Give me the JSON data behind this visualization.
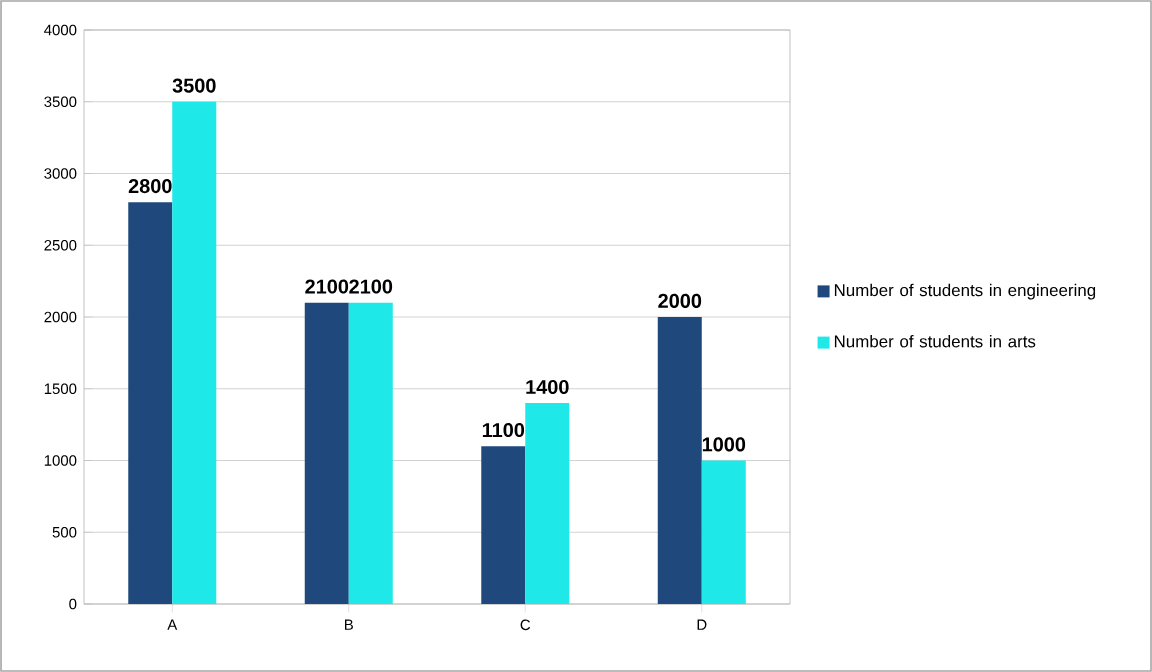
{
  "chart_data": {
    "type": "bar",
    "categories": [
      "A",
      "B",
      "C",
      "D"
    ],
    "series": [
      {
        "name": "Number of students in engineering",
        "color": "#1f497d",
        "values": [
          2800,
          2100,
          1100,
          2000
        ]
      },
      {
        "name": "Number of students in arts",
        "color": "#1ee8e8",
        "values": [
          3500,
          2100,
          1400,
          1000
        ]
      }
    ],
    "ylim": [
      0,
      4000
    ],
    "yticks": [
      0,
      500,
      1000,
      1500,
      2000,
      2500,
      3000,
      3500,
      4000
    ],
    "grid": "y",
    "legend": "right",
    "data_labels": true
  }
}
